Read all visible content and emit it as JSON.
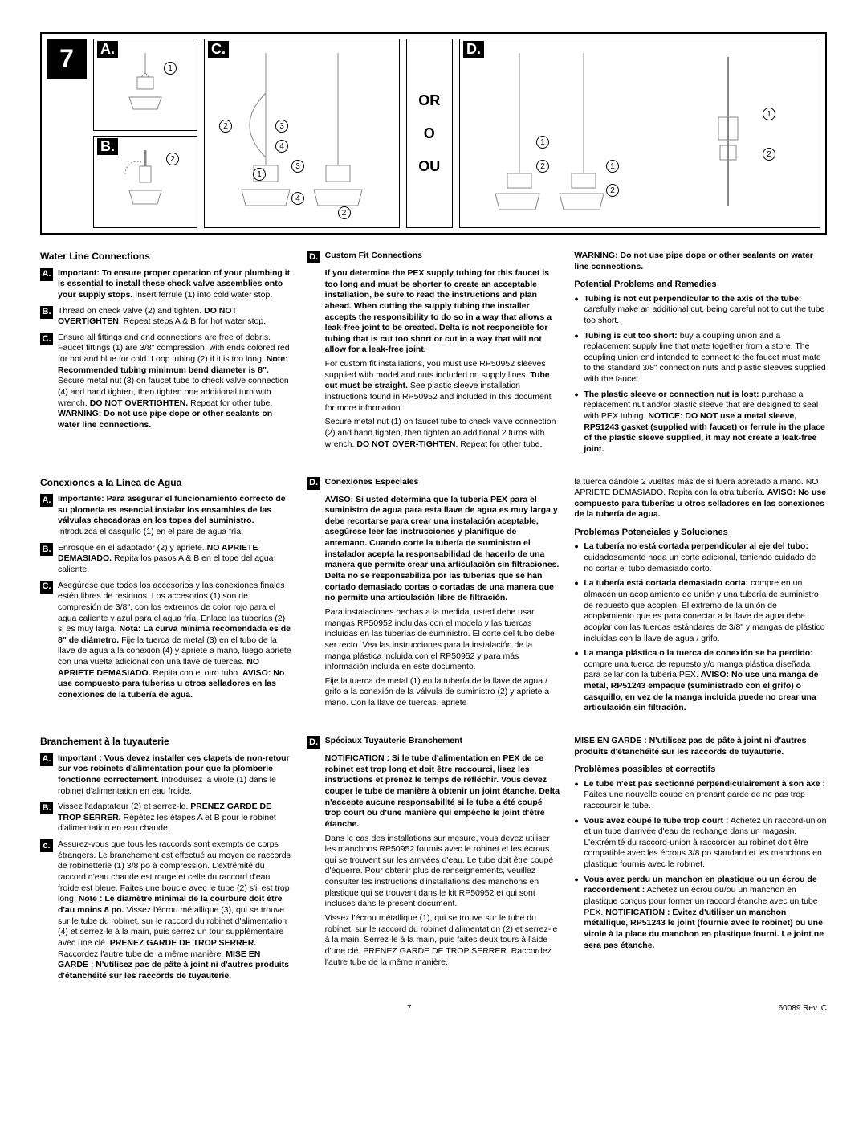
{
  "step": "7",
  "panels": {
    "a": "A.",
    "b": "B.",
    "c": "C.",
    "d": "D."
  },
  "or": {
    "l1": "OR",
    "l2": "O",
    "l3": "OU"
  },
  "en": {
    "title": "Water Line Connections",
    "a": "<b>Important: To ensure proper operation of your plumbing it is essential to install these check valve assemblies onto your supply stops.</b> Insert ferrule (1) into cold water stop.",
    "b": "Thread on check valve (2) and tighten. <b>DO NOT OVERTIGHTEN</b>. Repeat steps A & B for hot water stop.",
    "c": "Ensure all fittings and end connections are free of debris. Faucet fittings (1) are 3/8\" compression, with ends colored red for hot and blue for cold. Loop tubing (2) if it is too long. <b>Note: Recommended tubing minimum bend diameter is 8\".</b> Secure metal nut (3) on faucet tube to check valve connection (4) and hand tighten, then tighten one additional turn with wrench. <b>DO NOT OVERTIGHTEN.</b> Repeat for other tube. <b>WARNING: Do not use pipe dope or other sealants on water line connections.</b>",
    "d_title": "Custom Fit Connections",
    "d_body1": "<b>If you determine the PEX supply tubing for this faucet is too long and must be shorter to create an acceptable installation, be sure to read the instructions and plan ahead. When cutting the supply tubing the installer accepts the responsibility to do so in a way that allows a leak-free joint to be created. Delta is not responsible for tubing that is cut too short or cut in a way that will not allow for a leak-free joint.</b>",
    "d_body2": "For custom fit installations, you must use RP50952 sleeves supplied with model and nuts included on supply lines. <b>Tube cut must be straight.</b> See plastic sleeve installation instructions found in RP50952 and included in this document for more information.",
    "d_body3": "Secure metal nut (1) on faucet tube to check valve connection (2) and hand tighten, then tighten an additional 2 turns with wrench. <b>DO NOT OVER-TIGHTEN</b>. Repeat for other tube.",
    "warn": "<b>WARNING: Do not use pipe dope or other sealants on water line connections.</b>",
    "prob_title": "Potential Problems and Remedies",
    "prob1": "<b>Tubing is not cut perpendicular to the axis of the tube:</b> carefully make an additional cut, being careful not to cut the tube too short.",
    "prob2": "<b>Tubing is cut too short:</b> buy a coupling union and a replacement supply line that mate together from a store. The coupling union end intended to connect to the faucet must mate to the standard 3/8\" connection nuts and plastic sleeves supplied with the faucet.",
    "prob3": "<b>The plastic sleeve or connection nut is lost:</b> purchase a replacement nut and/or plastic sleeve that are designed to seal with PEX tubing. <b>NOTICE: DO NOT use a metal sleeve, RP51243 gasket (supplied with faucet) or ferrule in the place of the plastic sleeve supplied, it may not create a leak-free joint.</b>"
  },
  "es": {
    "title": "Conexiones a la Línea de Agua",
    "a": "<b>Importante: Para asegurar el funcionamiento correcto de su plomería es esencial instalar los ensambles de las válvulas checadoras en los topes del suministro.</b> Introduzca el casquillo (1) en el pare de agua fría.",
    "b": "Enrosque en el adaptador (2) y apriete. <b>NO APRIETE DEMASIADO.</b> Repita los pasos A & B en el tope del agua caliente.",
    "c": "Asegúrese que todos los accesorios y las conexiones finales estén libres de residuos. Los accesorios (1) son de compresión de 3/8\", con los extremos de color rojo para el agua caliente y azul para el agua fría. Enlace las tuberías (2) si es muy larga. <b>Nota: La curva mínima recomendada es de 8\" de diámetro.</b> Fije la tuerca de metal (3) en el tubo de la llave de agua a la conexión (4) y apriete a mano, luego apriete con una vuelta adicional con una llave de tuercas. <b>NO APRIETE DEMASIADO.</b> Repita con el otro tubo. <b>AVISO: No use compuesto para tuberías u otros selladores en las conexiones de la tubería de agua.</b>",
    "d_title": "Conexiones Especiales",
    "d_body1": "<b>AVISO: Si usted determina que la tubería PEX para el suministro de agua para esta llave de agua es muy larga y debe recortarse para crear una instalación aceptable, asegúrese leer las instrucciones y planifique de antemano. Cuando corte la tubería de suministro el instalador acepta la responsabilidad de hacerlo de una manera que permite crear una articulación sin filtraciones. Delta no se responsabiliza por las tuberías que se han cortado demasiado cortas o cortadas de una manera que no permite una articulación libre de filtración.</b>",
    "d_body2": "Para instalaciones hechas a la medida, usted debe usar mangas RP50952 incluidas con el modelo y las tuercas incluidas en las tuberías de suministro. El corte del tubo debe ser recto. Vea las instrucciones para la instalación de la manga plástica incluida con el RP50952 y para más información incluida en este documento.",
    "d_body3": "Fije la tuerca de metal (1) en la tubería de la llave de agua / grifo a la conexión de la válvula de suministro (2) y apriete a mano. Con la llave de tuercas, apriete",
    "d_body3b": "la tuerca dándole 2 vueltas más de si fuera apretado a mano. NO APRIETE DEMASIADO. Repita con la otra tubería. <b>AVISO: No use compuesto para tuberías u otros selladores en las conexiones de la tubería de agua.</b>",
    "prob_title": "Problemas Potenciales y Soluciones",
    "prob1": "<b>La tubería no está cortada perpendicular al eje del tubo:</b> cuidadosamente haga un corte adicional, teniendo cuidado de no cortar el tubo demasiado corto.",
    "prob2": "<b>La tubería está cortada demasiado corta:</b> compre en un almacén un acoplamiento de unión y una tubería de suministro de repuesto que acoplen. El extremo de la unión de acoplamiento que es para conectar a la llave de agua debe acoplar con las tuercas estándares de 3/8\" y mangas de plástico incluidas con la llave de agua / grifo.",
    "prob3": "<b>La manga plástica o la tuerca de conexión se ha perdido:</b> compre una tuerca de repuesto y/o manga plástica diseñada para sellar con la tubería PEX. <b>AVISO: No use una manga de metal, RP51243 empaque (suministrado con el grifo) o casquillo, en vez de la manga incluida puede no crear una articulación sin filtración.</b>"
  },
  "fr": {
    "title": "Branchement à la tuyauterie",
    "a": "<b>Important : Vous devez installer ces clapets de non-retour sur vos robinets d'alimentation pour que la plomberie fonctionne correctement.</b> Introduisez la virole (1) dans le robinet d'alimentation en eau froide.",
    "b": "Vissez l'adaptateur (2) et serrez-le. <b>PRENEZ GARDE DE TROP SERRER.</b> Répétez les étapes A et B pour le robinet d'alimentation en eau chaude.",
    "c": "Assurez-vous que tous les raccords sont exempts de corps étrangers. Le branchement est effectué au moyen de raccords de robinetterie (1) 3/8 po à compression. L'extrémité du raccord d'eau chaude est rouge et celle du raccord d'eau froide est bleue. Faites une boucle avec le tube (2) s'il est trop long. <b>Note : Le diamètre minimal de la courbure doit être d'au moins 8 po.</b> Vissez l'écrou métallique (3), qui se trouve sur le tube du robinet, sur le raccord du robinet d'alimentation (4) et serrez-le à la main, puis serrez un tour supplémentaire avec une clé. <b>PRENEZ GARDE DE TROP SERRER.</b> Raccordez l'autre tube de la même manière. <b>MISE EN GARDE : N'utilisez pas de pâte à joint ni d'autres produits d'étanchéité sur les raccords de tuyauterie.</b>",
    "d_title": "Spéciaux Tuyauterie Branchement",
    "d_body1": "<b>NOTIFICATION : Si le tube d'alimentation en PEX de ce robinet est trop long et doit être raccourci, lisez les instructions et prenez le temps de réfléchir. Vous devez couper le tube de manière à obtenir un joint étanche. Delta n'accepte aucune responsabilité si le tube a été coupé trop court ou d'une manière qui empêche le joint d'être étanche.</b>",
    "d_body2": "Dans le cas des installations sur mesure, vous devez utiliser les manchons RP50952 fournis avec le robinet et les écrous qui se trouvent sur les arrivées d'eau. Le tube doit être coupé d'équerre. Pour obtenir plus de renseignements, veuillez consulter les instructions d'installations des manchons en plastique qui se trouvent dans le kit RP50952 et qui sont incluses dans le présent document.",
    "d_body3": "Vissez l'écrou métallique (1), qui se trouve sur le tube du robinet, sur le raccord du robinet d'alimentation (2) et serrez-le à la main. Serrez-le à la main, puis faites deux tours à l'aide d'une clé. PRENEZ GARDE DE TROP SERRER. Raccordez l'autre tube de la même manière.",
    "warn": "<b>MISE EN GARDE : N'utilisez pas de pâte à joint ni d'autres produits d'étanchéité sur les raccords de tuyauterie.</b>",
    "prob_title": "Problèmes possibles et correctifs",
    "prob1": "<b>Le tube n'est pas sectionné perpendiculairement à son axe :</b> Faites une nouvelle coupe en prenant garde de ne pas trop raccourcir le tube.",
    "prob2": "<b>Vous avez coupé le tube trop court :</b> Achetez un raccord-union et un tube d'arrivée d'eau de rechange dans un magasin. L'extrémité du raccord-union à raccorder au robinet doit être compatible avec les écrous 3/8 po standard et les manchons en plastique fournis avec le robinet.",
    "prob3": "<b>Vous avez perdu un manchon en plastique ou un écrou de raccordement :</b> Achetez un écrou ou/ou un manchon en plastique conçus pour former un raccord étanche avec un tube PEX. <b>NOTIFICATION : Évitez d'utiliser un manchon métallique, RP51243 le joint (fournie avec le robinet) ou une virole à la place du manchon en plastique fourni. Le joint ne sera pas étanche.</b>"
  },
  "footer": {
    "page": "7",
    "rev": "60089   Rev. C"
  }
}
